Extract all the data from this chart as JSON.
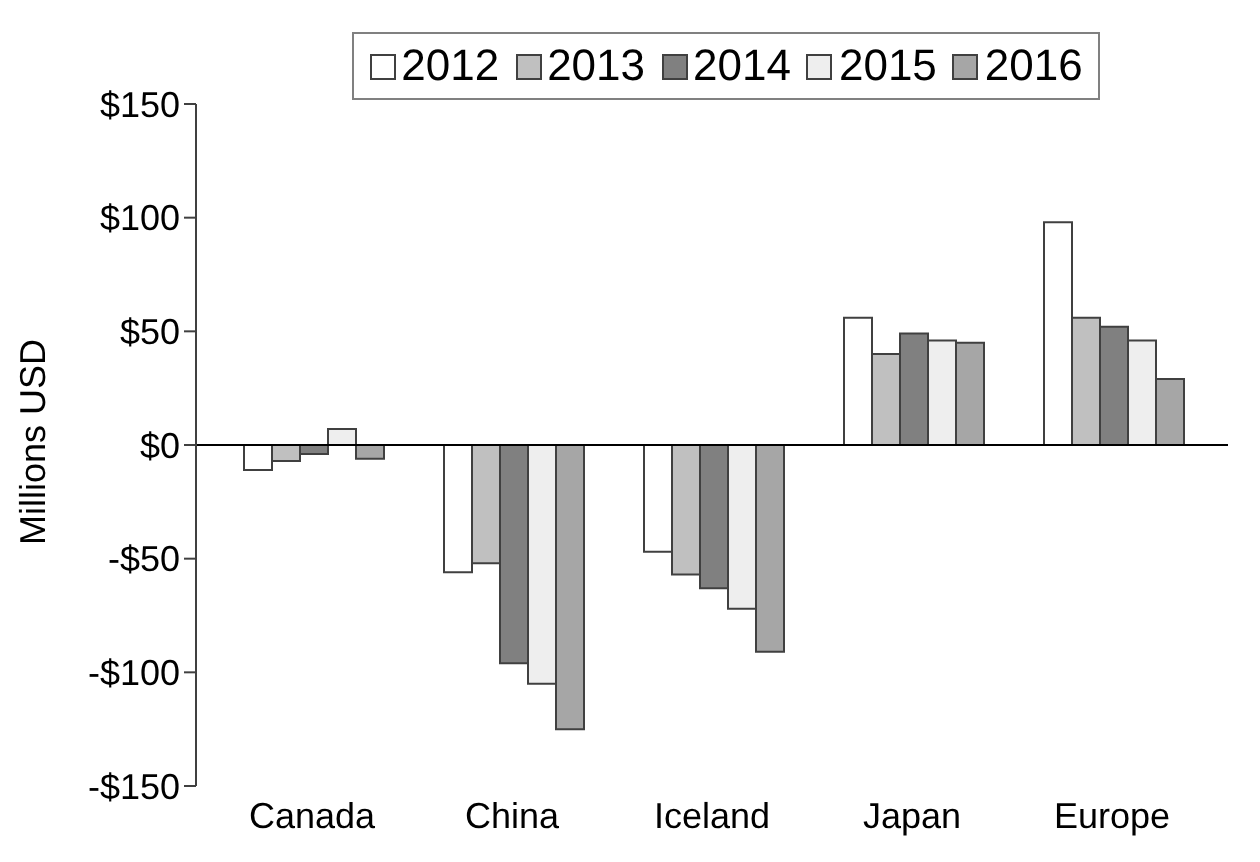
{
  "chart_data": {
    "type": "bar",
    "ylabel": "Millions USD",
    "categories": [
      "Canada",
      "China",
      "Iceland",
      "Japan",
      "Europe"
    ],
    "series": [
      {
        "name": "2012",
        "color": "#ffffff",
        "values": [
          -11,
          -56,
          -47,
          56,
          98
        ]
      },
      {
        "name": "2013",
        "color": "#c0c0c0",
        "values": [
          -7,
          -52,
          -57,
          40,
          56
        ]
      },
      {
        "name": "2014",
        "color": "#808080",
        "values": [
          -4,
          -96,
          -63,
          49,
          52
        ]
      },
      {
        "name": "2015",
        "color": "#eeeeee",
        "values": [
          7,
          -105,
          -72,
          46,
          46
        ]
      },
      {
        "name": "2016",
        "color": "#a6a6a6",
        "values": [
          -6,
          -125,
          -91,
          45,
          29
        ]
      }
    ],
    "ylim": [
      -150,
      150
    ],
    "yticks": [
      {
        "value": -150,
        "label": "-$150"
      },
      {
        "value": -100,
        "label": "-$100"
      },
      {
        "value": -50,
        "label": "-$50"
      },
      {
        "value": 0,
        "label": "$0"
      },
      {
        "value": 50,
        "label": "$50"
      },
      {
        "value": 100,
        "label": "$100"
      },
      {
        "value": 150,
        "label": "$150"
      }
    ],
    "ref_lines": [
      {
        "axis": "y",
        "value": 0,
        "color": "#000000"
      }
    ],
    "grid": false,
    "legend": "top"
  }
}
